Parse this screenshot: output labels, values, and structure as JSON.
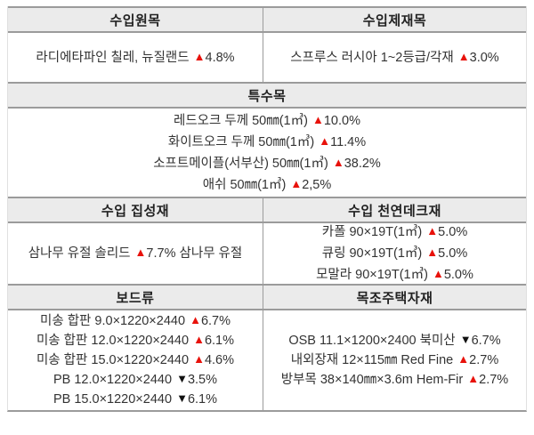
{
  "table": {
    "colors": {
      "up_triangle": "#e8120b",
      "down_triangle": "#111111",
      "header_bg": "#ebebeb",
      "border": "#9b9b9b"
    },
    "icons": {
      "up": {
        "name": "up-triangle-icon",
        "glyph": "▲"
      },
      "down": {
        "name": "down-triangle-icon",
        "glyph": "▼"
      }
    },
    "sections": [
      {
        "layout": "two-col",
        "columns": [
          {
            "header": "수입원목",
            "lines": [
              [
                {
                  "text": "라디에타파인 칠레, 뉴질랜드 "
                },
                {
                  "dir": "up",
                  "value": "4.8%"
                }
              ]
            ]
          },
          {
            "header": "수입제재목",
            "lines": [
              [
                {
                  "text": "스프루스 러시아 1~2등급/각재 "
                },
                {
                  "dir": "up",
                  "value": "3.0%"
                }
              ]
            ]
          }
        ]
      },
      {
        "layout": "full",
        "columns": [
          {
            "header": "특수목",
            "lines": [
              [
                {
                  "text": "레드오크 두께 50㎜(1㎥) "
                },
                {
                  "dir": "up",
                  "value": "10.0%"
                }
              ],
              [
                {
                  "text": "화이트오크 두께 50㎜(1㎥) "
                },
                {
                  "dir": "up",
                  "value": "11.4%"
                }
              ],
              [
                {
                  "text": "소프트메이플(서부산) 50㎜(1㎥) "
                },
                {
                  "dir": "up",
                  "value": "38.2%"
                }
              ],
              [
                {
                  "text": "애쉬 50㎜(1㎥) "
                },
                {
                  "dir": "up",
                  "value": "2,5%"
                }
              ]
            ]
          }
        ]
      },
      {
        "layout": "two-col",
        "columns": [
          {
            "header": "수입 집성재",
            "lines": [
              [
                {
                  "text": "삼나무 유절 솔리드 "
                },
                {
                  "dir": "up",
                  "value": "7.7%"
                },
                {
                  "text": " 삼나무 유절"
                }
              ]
            ]
          },
          {
            "header": "수입 천연데크재",
            "lines": [
              [
                {
                  "text": "카폴 90×19T(1㎥) "
                },
                {
                  "dir": "up",
                  "value": "5.0%"
                }
              ],
              [
                {
                  "text": "큐링 90×19T(1㎥) "
                },
                {
                  "dir": "up",
                  "value": "5.0%"
                }
              ],
              [
                {
                  "text": "모말라 90×19T(1㎥) "
                },
                {
                  "dir": "up",
                  "value": "5.0%"
                }
              ]
            ]
          }
        ]
      },
      {
        "layout": "two-col",
        "columns": [
          {
            "header": "보드류",
            "lines": [
              [
                {
                  "text": "미송 합판 9.0×1220×2440 "
                },
                {
                  "dir": "up",
                  "value": "6.7%"
                }
              ],
              [
                {
                  "text": "미송 합판 12.0×1220×2440 "
                },
                {
                  "dir": "up",
                  "value": "6.1%"
                }
              ],
              [
                {
                  "text": "미송 합판 15.0×1220×2440 "
                },
                {
                  "dir": "up",
                  "value": "4.6%"
                }
              ],
              [
                {
                  "text": "PB 12.0×1220×2440 "
                },
                {
                  "dir": "down",
                  "value": "3.5%"
                }
              ],
              [
                {
                  "text": "PB 15.0×1220×2440 "
                },
                {
                  "dir": "down",
                  "value": "6.1%"
                }
              ]
            ]
          },
          {
            "header": "목조주택자재",
            "lines": [
              [
                {
                  "text": "OSB 11.1×1200×2400 북미산 "
                },
                {
                  "dir": "down",
                  "value": "6.7%"
                }
              ],
              [
                {
                  "text": "내외장재 12×115㎜ Red Fine "
                },
                {
                  "dir": "up",
                  "value": "2.7%"
                }
              ],
              [
                {
                  "text": "방부목 38×140㎜×3.6m Hem-Fir "
                },
                {
                  "dir": "up",
                  "value": "2.7%"
                }
              ]
            ]
          }
        ]
      }
    ]
  }
}
